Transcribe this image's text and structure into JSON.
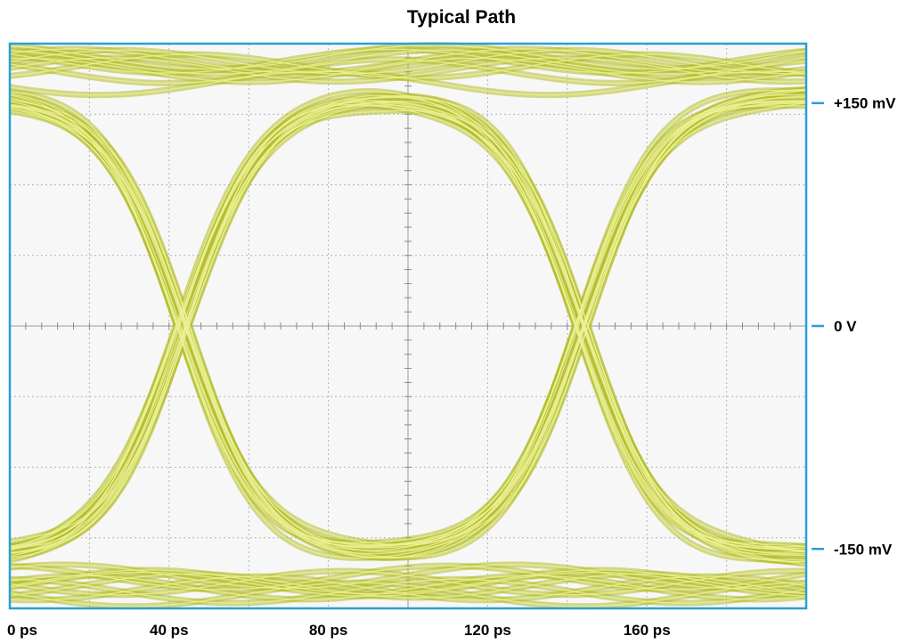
{
  "chart_data": {
    "type": "line",
    "title": "Typical Path",
    "subtitle": "",
    "xlabel": "",
    "ylabel": "",
    "x_unit": "ps",
    "y_unit": "mV",
    "xlim": [
      0,
      200
    ],
    "ylim": [
      -190,
      190
    ],
    "x_ticks": [
      {
        "value": 0,
        "label": "0 ps"
      },
      {
        "value": 40,
        "label": "40 ps"
      },
      {
        "value": 80,
        "label": "80 ps"
      },
      {
        "value": 120,
        "label": "120 ps"
      },
      {
        "value": 160,
        "label": "160 ps"
      }
    ],
    "y_ticks": [
      {
        "value": 150,
        "label": "+150 mV"
      },
      {
        "value": 0,
        "label": "0 V"
      },
      {
        "value": -150,
        "label": "-150 mV"
      }
    ],
    "grid": true,
    "legend": "none",
    "eye_diagram": {
      "unit_interval_ps": 100,
      "crossings_ps": [
        43,
        143
      ],
      "high_level_mv": 155,
      "low_level_mv": -155,
      "overshoot_mv": 180
    },
    "series": [
      {
        "values": [
          [
            0,
            162
          ],
          [
            43,
            0
          ],
          [
            100,
            -162
          ],
          [
            143,
            0
          ],
          [
            200,
            162
          ]
        ]
      },
      {
        "values": [
          [
            0,
            -160
          ],
          [
            43,
            0
          ],
          [
            100,
            160
          ],
          [
            143,
            0
          ],
          [
            200,
            -160
          ]
        ]
      },
      {
        "values": [
          [
            0,
            180
          ],
          [
            100,
            178
          ],
          [
            200,
            175
          ]
        ]
      },
      {
        "values": [
          [
            0,
            -180
          ],
          [
            100,
            -178
          ],
          [
            200,
            -175
          ]
        ]
      }
    ],
    "colors": {
      "frame": "#2a9fd6",
      "trace": "#b3be2c",
      "trace_highlight": "#ecf098",
      "grid": "#b4b4b4",
      "plot_background": "#f7f7f7"
    }
  }
}
